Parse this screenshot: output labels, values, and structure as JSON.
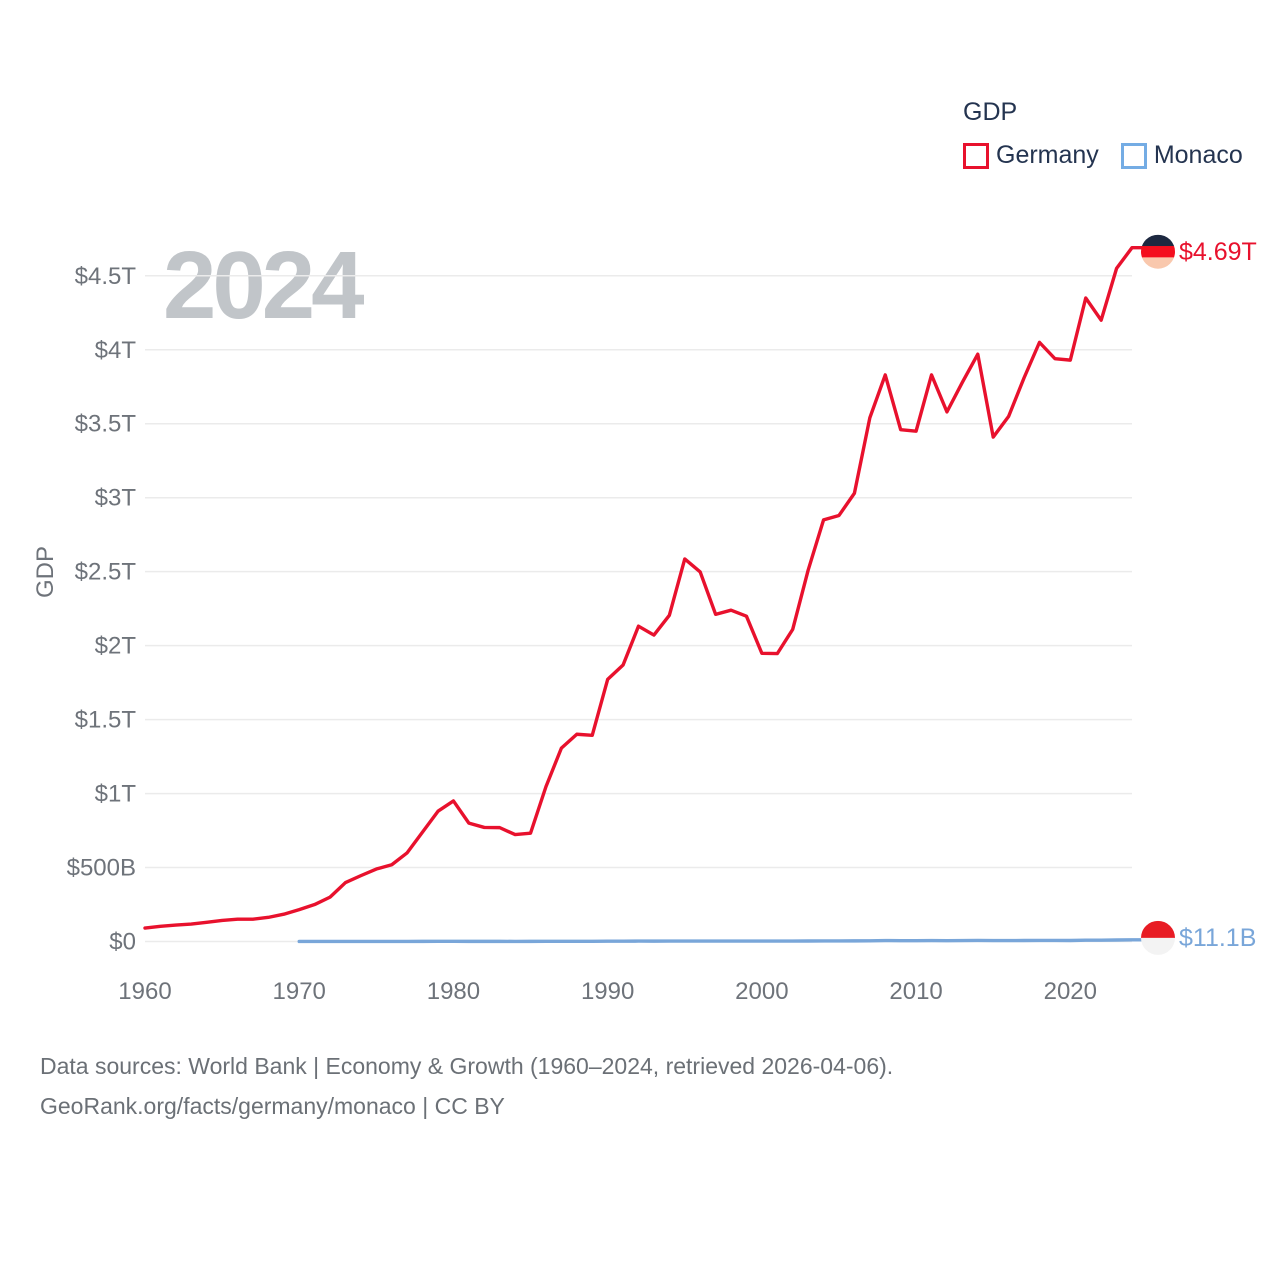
{
  "watermark": "2024",
  "legend": {
    "title": "GDP",
    "series": [
      {
        "label": "Germany",
        "color": "#e8112d"
      },
      {
        "label": "Monaco",
        "color": "#74ace4"
      }
    ]
  },
  "end_labels": {
    "germany": "$4.69T",
    "monaco": "$11.1B"
  },
  "footer": {
    "line1": "Data sources: World Bank | Economy & Growth (1960–2024, retrieved 2026-04-06).",
    "line2": "GeoRank.org/facts/germany/monaco | CC BY"
  },
  "colors": {
    "germany_line": "#e8112d",
    "monaco_line": "#79a6d9",
    "germany_value_label": "#e8112d",
    "monaco_value_label": "#79a6d9",
    "gridline": "#ebebeb",
    "tick_text": "#6e737a",
    "legend_text": "#243450",
    "watermark": "#c1c5c9",
    "flag_germany_black": "#1d2840",
    "flag_germany_red": "#f40f1e",
    "flag_germany_gold": "#f9c8ad",
    "flag_monaco_red": "#e81c24",
    "flag_monaco_white": "#f3f3f3"
  },
  "chart_data": {
    "type": "line",
    "title": "GDP",
    "ylabel": "GDP",
    "xlabel": "",
    "grid": true,
    "legend_position": "top-right",
    "values_unit": "USD billions",
    "ylim_billions": [
      0,
      4750
    ],
    "x_ticks": [
      1960,
      1970,
      1980,
      1990,
      2000,
      2010,
      2020
    ],
    "y_ticks": [
      {
        "value": 0,
        "label": "$0"
      },
      {
        "value": 500,
        "label": "$500B"
      },
      {
        "value": 1000,
        "label": "$1T"
      },
      {
        "value": 1500,
        "label": "$1.5T"
      },
      {
        "value": 2000,
        "label": "$2T"
      },
      {
        "value": 2500,
        "label": "$2.5T"
      },
      {
        "value": 3000,
        "label": "$3T"
      },
      {
        "value": 3500,
        "label": "$3.5T"
      },
      {
        "value": 4000,
        "label": "$4T"
      },
      {
        "value": 4500,
        "label": "$4.5T"
      }
    ],
    "years": [
      1960,
      1961,
      1962,
      1963,
      1964,
      1965,
      1966,
      1967,
      1968,
      1969,
      1970,
      1971,
      1972,
      1973,
      1974,
      1975,
      1976,
      1977,
      1978,
      1979,
      1980,
      1981,
      1982,
      1983,
      1984,
      1985,
      1986,
      1987,
      1988,
      1989,
      1990,
      1991,
      1992,
      1993,
      1994,
      1995,
      1996,
      1997,
      1998,
      1999,
      2000,
      2001,
      2002,
      2003,
      2004,
      2005,
      2006,
      2007,
      2008,
      2009,
      2010,
      2011,
      2012,
      2013,
      2014,
      2015,
      2016,
      2017,
      2018,
      2019,
      2020,
      2021,
      2022,
      2023,
      2024
    ],
    "series": [
      {
        "name": "Germany",
        "color": "#e8112d",
        "end_label": "$4.69T",
        "flag": "germany",
        "values_billions": [
          90.6,
          103.0,
          111.0,
          118.1,
          130.1,
          142.3,
          150.9,
          151.1,
          163.2,
          184.5,
          215.8,
          249.9,
          299.8,
          398.4,
          445.3,
          489.8,
          519.0,
          599.7,
          740.0,
          880.8,
          950.3,
          800.1,
          771.0,
          769.7,
          722.6,
          732.5,
          1047.0,
          1307.2,
          1401.0,
          1393.7,
          1771.7,
          1868.9,
          2131.6,
          2071.3,
          2205.1,
          2585.8,
          2497.9,
          2211.6,
          2239.6,
          2199.0,
          1948.0,
          1946.1,
          2110.0,
          2510.0,
          2850.0,
          2880.0,
          3030.0,
          3540.0,
          3830.0,
          3460.0,
          3450.0,
          3830.0,
          3580.0,
          3780.0,
          3970.0,
          3410.0,
          3550.0,
          3810.0,
          4050.0,
          3940.0,
          3930.0,
          4350.0,
          4200.0,
          4550.0,
          4690.0
        ]
      },
      {
        "name": "Monaco",
        "color": "#79a6d9",
        "end_label": "$11.1B",
        "flag": "monaco",
        "values_billions": [
          null,
          null,
          null,
          null,
          null,
          null,
          null,
          null,
          null,
          null,
          0.28,
          0.32,
          0.38,
          0.49,
          0.52,
          0.58,
          0.6,
          0.66,
          0.79,
          0.95,
          1.0,
          0.87,
          0.83,
          0.79,
          0.74,
          0.84,
          1.16,
          1.41,
          1.54,
          1.57,
          2.3,
          2.41,
          2.64,
          2.53,
          2.66,
          2.99,
          2.98,
          2.71,
          2.83,
          2.82,
          2.65,
          2.62,
          2.85,
          3.38,
          3.74,
          3.93,
          4.24,
          4.9,
          6.48,
          5.55,
          5.36,
          6.08,
          5.72,
          6.55,
          7.06,
          6.26,
          6.47,
          6.78,
          7.42,
          7.22,
          6.82,
          8.6,
          8.77,
          10.1,
          11.1
        ]
      }
    ]
  }
}
